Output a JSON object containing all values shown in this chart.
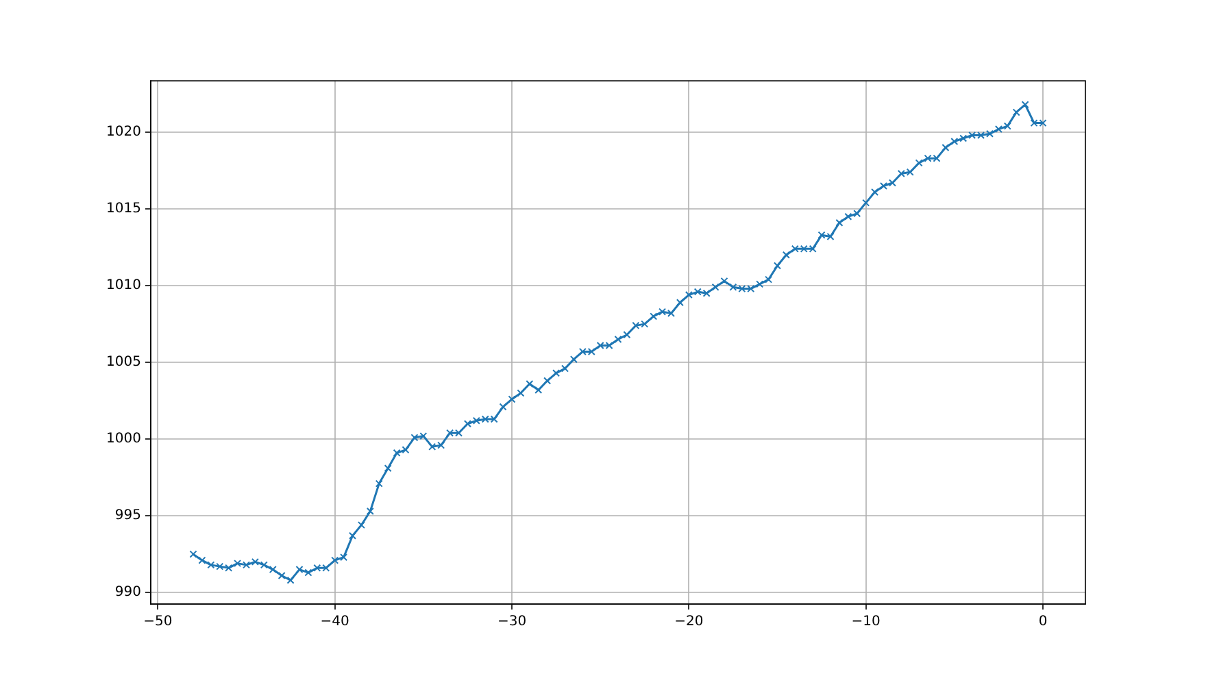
{
  "chart_data": {
    "type": "line",
    "x": [
      -48,
      -47.5,
      -47,
      -46.5,
      -46,
      -45.5,
      -45,
      -44.5,
      -44,
      -43.5,
      -43,
      -42.5,
      -42,
      -41.5,
      -41,
      -40.5,
      -40,
      -39.5,
      -39,
      -38.5,
      -38,
      -37.5,
      -37,
      -36.5,
      -36,
      -35.5,
      -35,
      -34.5,
      -34,
      -33.5,
      -33,
      -32.5,
      -32,
      -31.5,
      -31,
      -30.5,
      -30,
      -29.5,
      -29,
      -28.5,
      -28,
      -27.5,
      -27,
      -26.5,
      -26,
      -25.5,
      -25,
      -24.5,
      -24,
      -23.5,
      -23,
      -22.5,
      -22,
      -21.5,
      -21,
      -20.5,
      -20,
      -19.5,
      -19,
      -18.5,
      -18,
      -17.5,
      -17,
      -16.5,
      -16,
      -15.5,
      -15,
      -14.5,
      -14,
      -13.5,
      -13,
      -12.5,
      -12,
      -11.5,
      -11,
      -10.5,
      -10,
      -9.5,
      -9,
      -8.5,
      -8,
      -7.5,
      -7,
      -6.5,
      -6,
      -5.5,
      -5,
      -4.5,
      -4,
      -3.5,
      -3,
      -2.5,
      -2,
      -1.5,
      -1,
      -0.5,
      0
    ],
    "series": [
      {
        "color": "#1f77b4",
        "values": [
          992.5,
          992.1,
          991.8,
          991.7,
          991.6,
          991.9,
          991.8,
          992.0,
          991.8,
          991.5,
          991.1,
          990.8,
          991.5,
          991.3,
          991.6,
          991.6,
          992.1,
          992.3,
          993.7,
          994.4,
          995.3,
          997.1,
          998.1,
          999.1,
          999.3,
          1000.1,
          1000.2,
          999.5,
          999.6,
          1000.4,
          1000.4,
          1001.0,
          1001.2,
          1001.3,
          1001.3,
          1002.1,
          1002.6,
          1003.0,
          1003.6,
          1003.2,
          1003.8,
          1004.3,
          1004.6,
          1005.2,
          1005.7,
          1005.7,
          1006.1,
          1006.1,
          1006.5,
          1006.8,
          1007.4,
          1007.5,
          1008.0,
          1008.3,
          1008.2,
          1008.9,
          1009.4,
          1009.6,
          1009.5,
          1009.9,
          1010.3,
          1009.9,
          1009.8,
          1009.8,
          1010.1,
          1010.4,
          1011.3,
          1012.0,
          1012.4,
          1012.4,
          1012.4,
          1013.3,
          1013.2,
          1014.1,
          1014.5,
          1014.7,
          1015.4,
          1016.1,
          1016.5,
          1016.7,
          1017.3,
          1017.4,
          1018.0,
          1018.3,
          1018.3,
          1019.0,
          1019.4,
          1019.6,
          1019.8,
          1019.8,
          1019.9,
          1020.2,
          1020.4,
          1021.3,
          1021.8,
          1020.6,
          1020.6
        ]
      }
    ],
    "xlim": [
      -50.4,
      2.4
    ],
    "ylim": [
      989.25,
      1023.35
    ],
    "xticks": [
      -50,
      -40,
      -30,
      -20,
      -10,
      0
    ],
    "yticks": [
      990,
      995,
      1000,
      1005,
      1010,
      1015,
      1020
    ],
    "grid": true,
    "marker": "cross",
    "line_style": "solid"
  }
}
